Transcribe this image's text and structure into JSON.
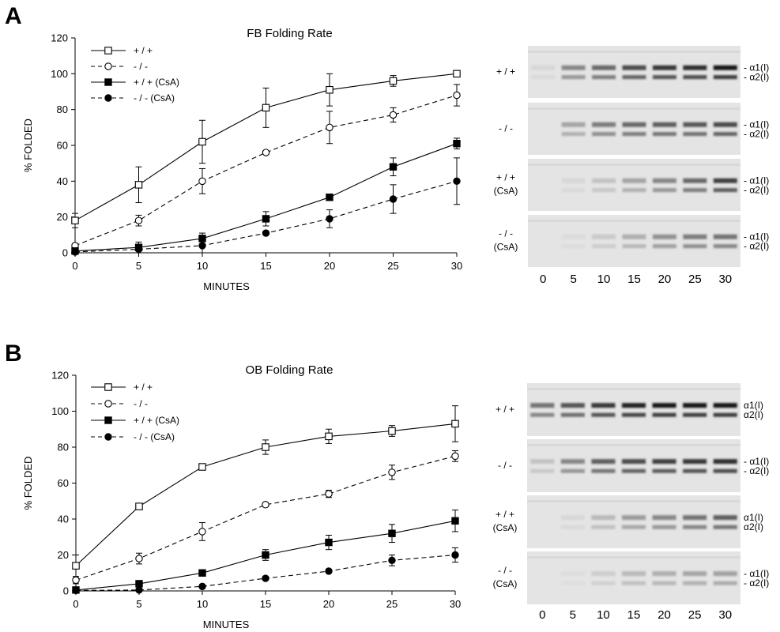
{
  "panels": [
    {
      "letter": "A",
      "chart_data": {
        "type": "line",
        "title": "FB Folding Rate",
        "xlabel": "MINUTES",
        "ylabel": "% FOLDED",
        "x": [
          0,
          5,
          10,
          15,
          20,
          25,
          30
        ],
        "xticks": [
          "0",
          "5",
          "10",
          "15",
          "20",
          "25",
          "30"
        ],
        "yticks": [
          "0",
          "20",
          "40",
          "60",
          "80",
          "100",
          "120"
        ],
        "xlim": [
          0,
          30
        ],
        "ylim": [
          0,
          120
        ],
        "grid": false,
        "legend_position": "top-left",
        "series": [
          {
            "name": "+ / +",
            "marker": "open-square",
            "line": "solid",
            "values": [
              18,
              38,
              62,
              81,
              91,
              96,
              100
            ],
            "errors": [
              4,
              10,
              12,
              11,
              9,
              3,
              1
            ]
          },
          {
            "name": "- / -",
            "marker": "open-circle",
            "line": "dashed",
            "values": [
              4,
              18,
              40,
              56,
              70,
              77,
              88
            ],
            "errors": [
              1,
              3,
              7,
              1,
              9,
              4,
              6
            ]
          },
          {
            "name": "+ / + (CsA)",
            "marker": "filled-square",
            "line": "solid",
            "values": [
              1,
              3,
              8,
              19,
              31,
              48,
              61
            ],
            "errors": [
              1,
              3,
              3,
              4,
              1,
              5,
              3
            ]
          },
          {
            "name": "- / - (CsA)",
            "marker": "filled-circle",
            "line": "dashed",
            "values": [
              0.5,
              2,
              4,
              11,
              19,
              30,
              40
            ],
            "errors": [
              0.5,
              1,
              4,
              1,
              5,
              8,
              13
            ]
          }
        ]
      },
      "gel": {
        "rows": [
          {
            "label": "+ / +",
            "sub": "",
            "bands": [
              "- α1(I)",
              "- α2(I)"
            ],
            "intensity": [
              0.05,
              0.45,
              0.6,
              0.75,
              0.85,
              0.9,
              1.0
            ]
          },
          {
            "label": "- / -",
            "sub": "",
            "bands": [
              "- α1(I)",
              "- α2(I)"
            ],
            "intensity": [
              0.0,
              0.3,
              0.5,
              0.6,
              0.65,
              0.68,
              0.75
            ]
          },
          {
            "label": "+ / +",
            "sub": "(CsA)",
            "bands": [
              "- α1(I)",
              "- α2(I)"
            ],
            "intensity": [
              0.0,
              0.05,
              0.15,
              0.3,
              0.45,
              0.6,
              0.8
            ]
          },
          {
            "label": "- / -",
            "sub": "(CsA)",
            "bands": [
              "- α1(I)",
              "- α2(I)"
            ],
            "intensity": [
              0.0,
              0.03,
              0.12,
              0.25,
              0.4,
              0.5,
              0.55
            ]
          }
        ],
        "lanes": [
          "0",
          "5",
          "10",
          "15",
          "20",
          "25",
          "30"
        ]
      }
    },
    {
      "letter": "B",
      "chart_data": {
        "type": "line",
        "title": "OB Folding Rate",
        "xlabel": "MINUTES",
        "ylabel": "% FOLDED",
        "x": [
          0,
          5,
          10,
          15,
          20,
          25,
          30
        ],
        "xticks": [
          "0",
          "5",
          "10",
          "15",
          "20",
          "25",
          "30"
        ],
        "yticks": [
          "0",
          "20",
          "40",
          "60",
          "80",
          "100",
          "120"
        ],
        "xlim": [
          0,
          30
        ],
        "ylim": [
          0,
          120
        ],
        "grid": false,
        "legend_position": "top-left",
        "series": [
          {
            "name": "+ / +",
            "marker": "open-square",
            "line": "solid",
            "values": [
              14,
              47,
              69,
              80,
              86,
              89,
              93
            ],
            "errors": [
              6,
              1,
              1,
              4,
              4,
              3,
              10
            ]
          },
          {
            "name": "- / -",
            "marker": "open-circle",
            "line": "dashed",
            "values": [
              6,
              18,
              33,
              48,
              54,
              66,
              75
            ],
            "errors": [
              2,
              3,
              5,
              1,
              2,
              4,
              3
            ]
          },
          {
            "name": "+ / + (CsA)",
            "marker": "filled-square",
            "line": "solid",
            "values": [
              0.5,
              4,
              10,
              20,
              27,
              32,
              39
            ],
            "errors": [
              0.5,
              1,
              1,
              3,
              4,
              5,
              6
            ]
          },
          {
            "name": "- / - (CsA)",
            "marker": "filled-circle",
            "line": "dashed",
            "values": [
              0.3,
              0.5,
              2.5,
              7,
              11,
              17,
              20
            ],
            "errors": [
              0.3,
              1,
              1,
              1,
              1,
              3,
              4
            ]
          }
        ]
      },
      "gel": {
        "rows": [
          {
            "label": "+ / +",
            "sub": "",
            "bands": [
              "α1(I)",
              "α2(I)"
            ],
            "intensity": [
              0.55,
              0.7,
              0.85,
              0.95,
              1.0,
              1.0,
              1.0
            ]
          },
          {
            "label": "- / -",
            "sub": "",
            "bands": [
              "- α1(I)",
              "- α2(I)"
            ],
            "intensity": [
              0.15,
              0.45,
              0.65,
              0.75,
              0.8,
              0.85,
              0.9
            ]
          },
          {
            "label": "+ / +",
            "sub": "(CsA)",
            "bands": [
              "α1(I)",
              "α2(I)"
            ],
            "intensity": [
              0.0,
              0.05,
              0.2,
              0.35,
              0.45,
              0.55,
              0.65
            ]
          },
          {
            "label": "- / -",
            "sub": "(CsA)",
            "bands": [
              "- α1(I)",
              "- α2(I)"
            ],
            "intensity": [
              0.0,
              0.02,
              0.1,
              0.2,
              0.25,
              0.3,
              0.32
            ]
          }
        ],
        "lanes": [
          "0",
          "5",
          "10",
          "15",
          "20",
          "25",
          "30"
        ]
      }
    }
  ]
}
